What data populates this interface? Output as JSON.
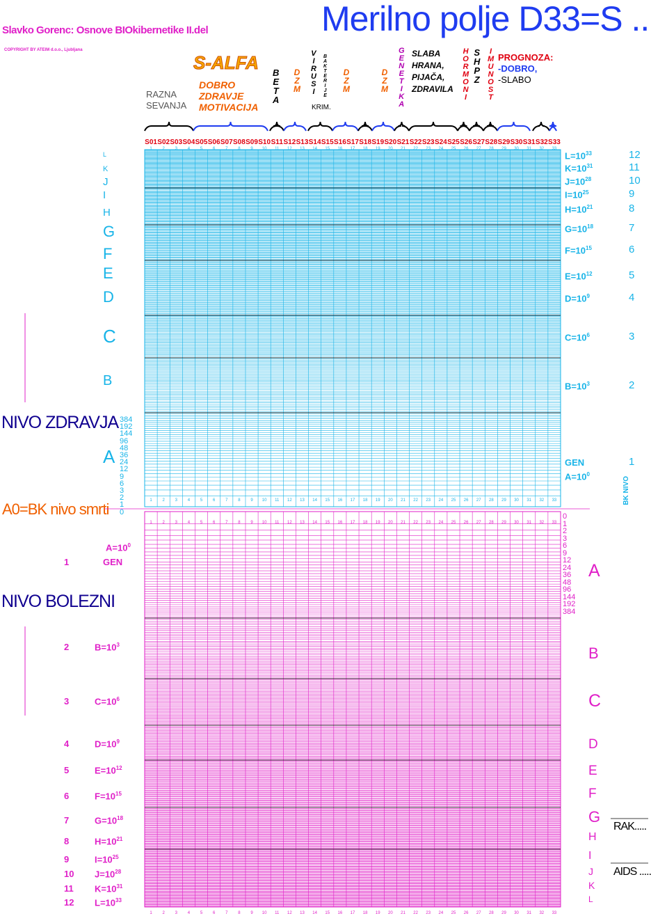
{
  "header": {
    "title": "Merilno polje D33=S ..",
    "author": "Slavko Gorenc: Osnove BIOkibernetike II.del",
    "copyright": "COPYRIGHT BY ATEIM d.o.o., Ljubljana"
  },
  "groups": {
    "salfa": "S-ALFA",
    "dobro_lines": [
      "DOBRO",
      "ZDRAVJE",
      "MOTIVACIJA"
    ],
    "razna_lines": [
      "RAZNA",
      "SEVANJA"
    ],
    "beta": "BETA",
    "dzm": "DZM",
    "virusi": "VIRUSI",
    "bakterije": "BAKTERIJE",
    "krim": "KRIM.",
    "genetika": "GENETIKA",
    "slaba_lines": [
      "SLABA",
      "HRANA,",
      "PIJAČA,",
      "ZDRAVILA"
    ],
    "hormoni": "HORMONI",
    "shpz": "SHPZ",
    "imunost": "IMUNOST",
    "prognoza": "PROGNOZA:",
    "prognoza_dobro": "-DOBRO,",
    "prognoza_slabo": "-SLABO"
  },
  "columns": [
    "S01",
    "S02",
    "S03",
    "S04",
    "S05",
    "S06",
    "S07",
    "S08",
    "S09",
    "S10",
    "S11",
    "S12",
    "S13",
    "S14",
    "S15",
    "S16",
    "S17",
    "S18",
    "S19",
    "S20",
    "S21",
    "S22",
    "S23",
    "S24",
    "S25",
    "S26",
    "S27",
    "S28",
    "S29",
    "S30",
    "S31",
    "S32",
    "S33"
  ],
  "health": {
    "label": "NIVO ZDRAVJA",
    "left_letters": [
      "L",
      "K",
      "J",
      "I",
      "H",
      "G",
      "F",
      "E",
      "D",
      "C",
      "B",
      "A"
    ],
    "right_levels": [
      {
        "label": "L=10",
        "exp": "33",
        "num": "12"
      },
      {
        "label": "K=10",
        "exp": "31",
        "num": "11"
      },
      {
        "label": "J=10",
        "exp": "28",
        "num": "10"
      },
      {
        "label": "I=10",
        "exp": "25",
        "num": "9"
      },
      {
        "label": "H=10",
        "exp": "21",
        "num": "8"
      },
      {
        "label": "G=10",
        "exp": "18",
        "num": "7"
      },
      {
        "label": "F=10",
        "exp": "15",
        "num": "6"
      },
      {
        "label": "E=10",
        "exp": "12",
        "num": "5"
      },
      {
        "label": "D=10",
        "exp": "9",
        "num": "4"
      },
      {
        "label": "C=10",
        "exp": "6",
        "num": "3"
      },
      {
        "label": "B=10",
        "exp": "3",
        "num": "2"
      },
      {
        "label": "GEN",
        "exp": "",
        "num": "1"
      },
      {
        "label": "A=10",
        "exp": "0",
        "num": ""
      }
    ],
    "scale": [
      "384",
      "192",
      "144",
      "96",
      "48",
      "36",
      "24",
      "12",
      "9",
      "6",
      "3",
      "2",
      "1",
      "0"
    ],
    "bk": "BK NIVO"
  },
  "a0_label": "A0=BK nivo smrti",
  "disease": {
    "label": "NIVO BOLEZNI",
    "left_levels": [
      {
        "num": "",
        "label": "A=10",
        "exp": "0"
      },
      {
        "num": "1",
        "label": "GEN",
        "exp": ""
      },
      {
        "num": "2",
        "label": "B=10",
        "exp": "3"
      },
      {
        "num": "3",
        "label": "C=10",
        "exp": "6"
      },
      {
        "num": "4",
        "label": "D=10",
        "exp": "9"
      },
      {
        "num": "5",
        "label": "E=10",
        "exp": "12"
      },
      {
        "num": "6",
        "label": "F=10",
        "exp": "15"
      },
      {
        "num": "7",
        "label": "G=10",
        "exp": "18"
      },
      {
        "num": "8",
        "label": "H=10",
        "exp": "21"
      },
      {
        "num": "9",
        "label": "I=10",
        "exp": "25"
      },
      {
        "num": "10",
        "label": "J=10",
        "exp": "28"
      },
      {
        "num": "11",
        "label": "K=10",
        "exp": "31"
      },
      {
        "num": "12",
        "label": "L=10",
        "exp": "33"
      }
    ],
    "right_letters": [
      "A",
      "B",
      "C",
      "D",
      "E",
      "F",
      "G",
      "H",
      "I",
      "J",
      "K",
      "L"
    ],
    "scale": [
      "0",
      "1",
      "2",
      "3",
      "6",
      "9",
      "12",
      "24",
      "36",
      "48",
      "96",
      "144",
      "192",
      "384"
    ],
    "rak": "RAK.....",
    "aids": "AIDS ....."
  },
  "colors": {
    "health": "#18b4e8",
    "disease": "#e020c8",
    "title": "#1f3cf0",
    "alert": "#e00010",
    "orange": "#f06000"
  }
}
